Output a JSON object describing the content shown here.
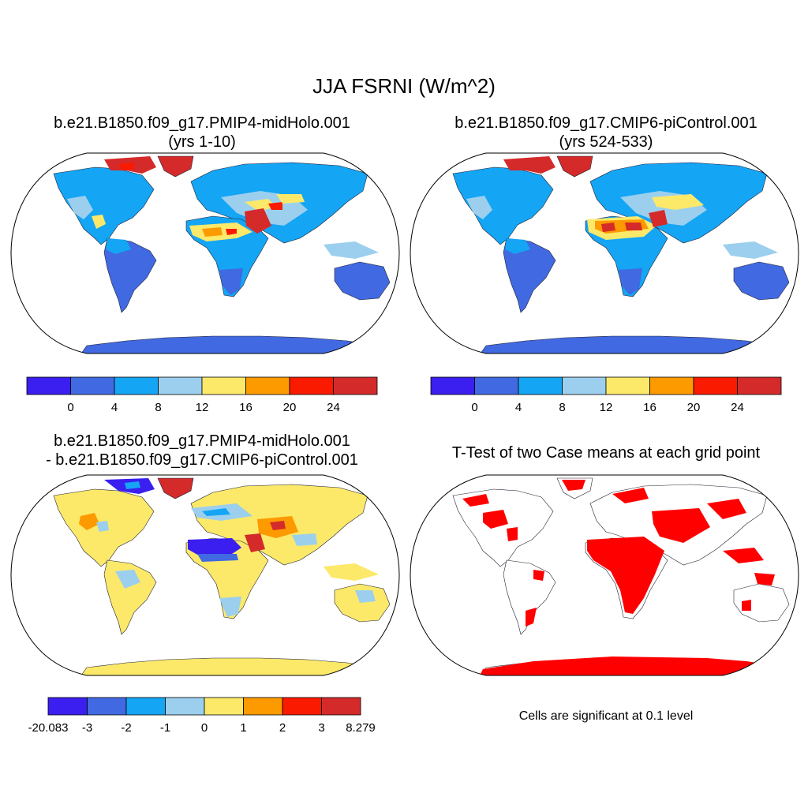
{
  "title": "JJA FSRNI (W/m^2)",
  "panels": [
    {
      "title_line1": "b.e21.B1850.f09_g17.PMIP4-midHolo.001",
      "title_line2": "(yrs 1-10)"
    },
    {
      "title_line1": "b.e21.B1850.f09_g17.CMIP6-piControl.001",
      "title_line2": "(yrs 524-533)"
    },
    {
      "title_line1": "b.e21.B1850.f09_g17.PMIP4-midHolo.001",
      "title_line2": "- b.e21.B1850.f09_g17.CMIP6-piControl.001"
    },
    {
      "title_line1": "T-Test of two Case means at each grid point",
      "title_line2": ""
    }
  ],
  "colorbars": [
    {
      "colors": [
        "#3a1ff0",
        "#4169e1",
        "#14a5f5",
        "#9ccfee",
        "#fce96a",
        "#fd9a00",
        "#f91a00",
        "#d42a2a"
      ],
      "labels": [
        "0",
        "4",
        "8",
        "12",
        "16",
        "20",
        "24"
      ]
    },
    {
      "colors": [
        "#3a1ff0",
        "#4169e1",
        "#14a5f5",
        "#9ccfee",
        "#fce96a",
        "#fd9a00",
        "#f91a00",
        "#d42a2a"
      ],
      "labels": [
        "0",
        "4",
        "8",
        "12",
        "16",
        "20",
        "24"
      ]
    },
    {
      "colors": [
        "#3a1ff0",
        "#4169e1",
        "#14a5f5",
        "#9ccfee",
        "#fce96a",
        "#fd9a00",
        "#f91a00",
        "#d42a2a"
      ],
      "labels": [
        "-20.083",
        "-3",
        "-2",
        "-1",
        "0",
        "1",
        "2",
        "3",
        "8.279"
      ]
    }
  ],
  "significance_note": "Cells are significant at 0.1 level",
  "significance_color": "#ff0000"
}
